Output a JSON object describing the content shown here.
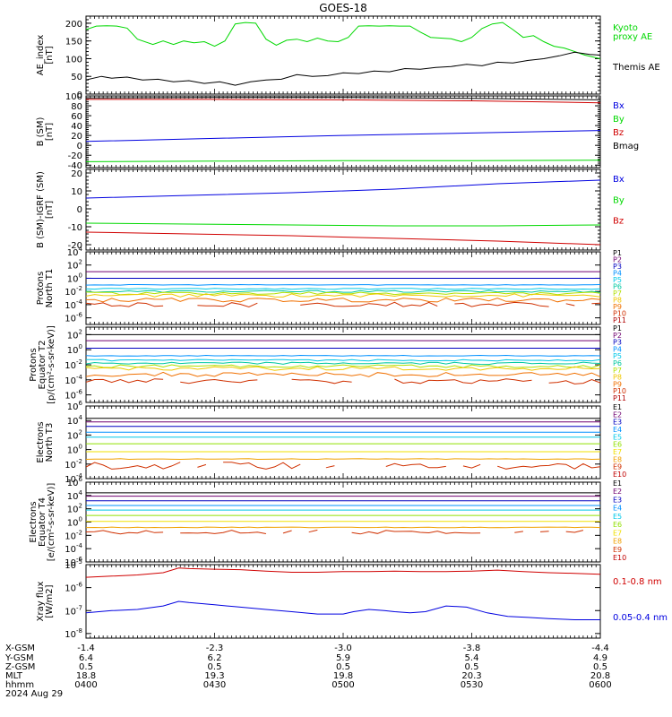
{
  "title": "GOES-18",
  "colors": {
    "black": "#000000",
    "blue": "#0000e0",
    "green": "#00d800",
    "red": "#d00000",
    "P1": "#000000",
    "P2": "#700070",
    "P3": "#0000c0",
    "P4": "#0090ff",
    "P5": "#00c8e8",
    "P6": "#00c8a0",
    "P7": "#b0e000",
    "P8": "#f0c800",
    "P9": "#f07000",
    "P10": "#d03000",
    "P11": "#b00000",
    "E1": "#000000",
    "E2": "#700070",
    "E3": "#0000c0",
    "E4": "#0090ff",
    "E5": "#00c8e8",
    "E6": "#90e000",
    "E7": "#f0e000",
    "E8": "#f0a000",
    "E9": "#d03000",
    "E10": "#c00000"
  },
  "orbit": {
    "row_labels": [
      "X-GSM",
      "Y-GSM",
      "Z-GSM",
      "MLT",
      "hhmm",
      "2024 Aug 29"
    ],
    "columns": [
      {
        "x": "-1.4",
        "y": "6.4",
        "z": "0.5",
        "mlt": "18.8",
        "hhmm": "0400"
      },
      {
        "x": "-2.3",
        "y": "6.2",
        "z": "0.5",
        "mlt": "19.3",
        "hhmm": "0430"
      },
      {
        "x": "-3.0",
        "y": "5.9",
        "z": "0.5",
        "mlt": "19.8",
        "hhmm": "0500"
      },
      {
        "x": "-3.8",
        "y": "5.4",
        "z": "0.5",
        "mlt": "20.3",
        "hhmm": "0530"
      },
      {
        "x": "-4.4",
        "y": "4.9",
        "z": "0.5",
        "mlt": "20.8",
        "hhmm": "0600"
      }
    ]
  },
  "chart_data": [
    {
      "id": "ae",
      "type": "line",
      "ylabel": [
        "AE_index",
        "[nT]"
      ],
      "ylim": [
        0,
        220
      ],
      "yticks": [
        0,
        50,
        100,
        150,
        200
      ],
      "legend": [
        {
          "text": "Kyoto",
          "color": "green"
        },
        {
          "text": "proxy AE",
          "color": "green"
        },
        {
          "text": "",
          "color": "black"
        },
        {
          "text": "Themis AE",
          "color": "black"
        }
      ],
      "series": [
        {
          "name": "Kyoto proxy AE",
          "color": "green",
          "x": [
            0,
            2,
            4,
            6,
            8,
            10,
            13,
            15,
            17,
            19,
            21,
            23,
            25,
            27,
            29,
            31,
            33,
            35,
            37,
            39,
            41,
            43,
            45,
            47,
            49,
            51,
            53,
            55,
            57,
            59,
            61,
            63,
            65,
            67,
            69,
            71,
            73,
            75,
            77,
            79,
            81,
            83,
            85,
            87,
            89,
            91,
            93,
            95,
            97,
            100
          ],
          "y": [
            182,
            192,
            193,
            192,
            186,
            155,
            140,
            150,
            140,
            150,
            145,
            148,
            135,
            150,
            198,
            202,
            200,
            155,
            138,
            152,
            155,
            148,
            158,
            150,
            148,
            160,
            192,
            193,
            192,
            193,
            192,
            192,
            175,
            160,
            158,
            156,
            148,
            160,
            185,
            198,
            202,
            182,
            160,
            165,
            148,
            135,
            130,
            120,
            110,
            100
          ]
        },
        {
          "name": "Themis AE",
          "color": "black",
          "x": [
            0,
            3,
            5,
            8,
            11,
            14,
            17,
            20,
            23,
            26,
            29,
            32,
            35,
            38,
            41,
            44,
            47,
            50,
            53,
            56,
            59,
            62,
            65,
            68,
            71,
            74,
            77,
            80,
            83,
            86,
            89,
            92,
            95,
            98,
            100
          ],
          "y": [
            40,
            50,
            45,
            48,
            40,
            42,
            35,
            38,
            30,
            35,
            25,
            35,
            40,
            42,
            55,
            50,
            52,
            60,
            58,
            65,
            63,
            72,
            70,
            75,
            78,
            84,
            80,
            90,
            88,
            95,
            100,
            108,
            118,
            112,
            110
          ]
        }
      ]
    },
    {
      "id": "b",
      "type": "line",
      "ylabel": [
        "B (SM)",
        "[nT]"
      ],
      "ylim": [
        -45,
        100
      ],
      "yticks": [
        -40,
        -20,
        0,
        20,
        40,
        60,
        80,
        100
      ],
      "legend": [
        {
          "text": "Bx",
          "color": "blue"
        },
        {
          "text": "By",
          "color": "green"
        },
        {
          "text": "Bz",
          "color": "red"
        },
        {
          "text": "Bmag",
          "color": "black"
        }
      ],
      "series": [
        {
          "name": "Bmag",
          "color": "black",
          "x": [
            0,
            25,
            50,
            75,
            100
          ],
          "y": [
            96,
            97,
            97,
            95,
            92
          ]
        },
        {
          "name": "Bz",
          "color": "red",
          "x": [
            0,
            25,
            50,
            75,
            100
          ],
          "y": [
            93,
            93,
            92,
            90,
            86
          ]
        },
        {
          "name": "Bx",
          "color": "blue",
          "x": [
            0,
            25,
            50,
            75,
            100
          ],
          "y": [
            8,
            14,
            20,
            25,
            30
          ]
        },
        {
          "name": "By",
          "color": "green",
          "x": [
            0,
            25,
            50,
            75,
            100
          ],
          "y": [
            -33,
            -32,
            -31,
            -31,
            -30
          ]
        }
      ]
    },
    {
      "id": "bdiff",
      "type": "line",
      "ylabel": [
        "B (SM)-IGRF (SM)",
        "[nT]"
      ],
      "ylim": [
        -23,
        22
      ],
      "yticks": [
        -20,
        -10,
        0,
        10,
        20
      ],
      "legend": [
        {
          "text": "Bx",
          "color": "blue"
        },
        {
          "text": "By",
          "color": "green"
        },
        {
          "text": "Bz",
          "color": "red"
        }
      ],
      "series": [
        {
          "name": "Bx",
          "color": "blue",
          "x": [
            0,
            20,
            40,
            60,
            80,
            100
          ],
          "y": [
            6,
            7.5,
            9,
            11,
            14,
            16
          ]
        },
        {
          "name": "By",
          "color": "green",
          "x": [
            0,
            20,
            40,
            60,
            80,
            100
          ],
          "y": [
            -8,
            -8.5,
            -9,
            -9.5,
            -9.5,
            -9
          ]
        },
        {
          "name": "Bz",
          "color": "red",
          "x": [
            0,
            20,
            40,
            60,
            80,
            100
          ],
          "y": [
            -13,
            -14,
            -15,
            -16.5,
            -18,
            -20
          ]
        }
      ]
    },
    {
      "id": "p1",
      "type": "line",
      "log": true,
      "ylabel": [
        "Protons",
        "North T1"
      ],
      "ylim": [
        -7,
        4
      ],
      "yticks": [
        -6,
        -4,
        -2,
        0,
        2,
        4
      ],
      "legend": [
        {
          "text": "P1",
          "color": "P1"
        },
        {
          "text": "P2",
          "color": "P2"
        },
        {
          "text": "P3",
          "color": "P3"
        },
        {
          "text": "P4",
          "color": "P4"
        },
        {
          "text": "P5",
          "color": "P5"
        },
        {
          "text": "P6",
          "color": "P6"
        },
        {
          "text": "P7",
          "color": "P7"
        },
        {
          "text": "P8",
          "color": "P8"
        },
        {
          "text": "P9",
          "color": "P9"
        },
        {
          "text": "P10",
          "color": "P10"
        },
        {
          "text": "P11",
          "color": "P11"
        }
      ],
      "series": [
        {
          "name": "P2",
          "color": "P2",
          "flat": 1.0,
          "j": 0
        },
        {
          "name": "P3",
          "color": "P3",
          "flat": 0.0,
          "j": 0
        },
        {
          "name": "P4",
          "color": "P4",
          "flat": -1.0,
          "j": 0.05
        },
        {
          "name": "P5",
          "color": "P5",
          "flat": -1.6,
          "j": 0.08
        },
        {
          "name": "P6",
          "color": "P6",
          "flat": -2.0,
          "j": 0.15
        },
        {
          "name": "P7",
          "color": "P7",
          "flat": -2.3,
          "j": 0.2
        },
        {
          "name": "P8",
          "color": "P8",
          "flat": -2.6,
          "j": 0.25
        },
        {
          "name": "P9",
          "color": "P9",
          "flat": -3.3,
          "j": 0.3
        },
        {
          "name": "P10",
          "color": "P10",
          "flat": -4.0,
          "j": 0.35,
          "gaps": true
        }
      ]
    },
    {
      "id": "p2",
      "type": "line",
      "log": true,
      "ylabel": [
        "Protons",
        "Equator T2",
        "[p/(cm²-s-sr-keV)]"
      ],
      "ylim": [
        -7,
        3
      ],
      "yticks": [
        -6,
        -4,
        -2,
        0,
        2
      ],
      "legend": [
        {
          "text": "P1",
          "color": "P1"
        },
        {
          "text": "P2",
          "color": "P2"
        },
        {
          "text": "P3",
          "color": "P3"
        },
        {
          "text": "P4",
          "color": "P4"
        },
        {
          "text": "P5",
          "color": "P5"
        },
        {
          "text": "P6",
          "color": "P6"
        },
        {
          "text": "P7",
          "color": "P7"
        },
        {
          "text": "P8",
          "color": "P8"
        },
        {
          "text": "P9",
          "color": "P9"
        },
        {
          "text": "P10",
          "color": "P10"
        },
        {
          "text": "P11",
          "color": "P11"
        }
      ],
      "series": [
        {
          "name": "P1",
          "color": "P1",
          "flat": 2.0,
          "j": 0
        },
        {
          "name": "P2",
          "color": "P2",
          "flat": 1.2,
          "j": 0
        },
        {
          "name": "P3",
          "color": "P3",
          "flat": 0.2,
          "j": 0
        },
        {
          "name": "P4",
          "color": "P4",
          "flat": -0.8,
          "j": 0.05
        },
        {
          "name": "P5",
          "color": "P5",
          "flat": -1.4,
          "j": 0.1
        },
        {
          "name": "P6",
          "color": "P6",
          "flat": -1.8,
          "j": 0.15
        },
        {
          "name": "P7",
          "color": "P7",
          "flat": -2.2,
          "j": 0.2
        },
        {
          "name": "P8",
          "color": "P8",
          "flat": -2.5,
          "j": 0.25
        },
        {
          "name": "P9",
          "color": "P9",
          "flat": -3.3,
          "j": 0.3
        },
        {
          "name": "P10",
          "color": "P10",
          "flat": -4.2,
          "j": 0.35,
          "gaps": true
        }
      ]
    },
    {
      "id": "e3",
      "type": "line",
      "log": true,
      "ylabel": [
        "Electrons",
        "North T3"
      ],
      "ylim": [
        -4,
        6
      ],
      "yticks": [
        -4,
        -2,
        0,
        2,
        4,
        6
      ],
      "legend": [
        {
          "text": "E1",
          "color": "E1"
        },
        {
          "text": "E2",
          "color": "E2"
        },
        {
          "text": "E3",
          "color": "E3"
        },
        {
          "text": "E4",
          "color": "E4"
        },
        {
          "text": "E5",
          "color": "E5"
        },
        {
          "text": "E6",
          "color": "E6"
        },
        {
          "text": "E7",
          "color": "E7"
        },
        {
          "text": "E8",
          "color": "E8"
        },
        {
          "text": "E9",
          "color": "E9"
        },
        {
          "text": "E10",
          "color": "E10"
        }
      ],
      "series": [
        {
          "name": "E1",
          "color": "E1",
          "flat": 4.3,
          "j": 0
        },
        {
          "name": "E2",
          "color": "E2",
          "flat": 3.8,
          "j": 0
        },
        {
          "name": "E3",
          "color": "E3",
          "flat": 3.2,
          "j": 0
        },
        {
          "name": "E4",
          "color": "E4",
          "flat": 2.4,
          "j": 0
        },
        {
          "name": "E5",
          "color": "E5",
          "flat": 1.7,
          "j": 0
        },
        {
          "name": "E6",
          "color": "E6",
          "flat": 0.8,
          "j": 0
        },
        {
          "name": "E7",
          "color": "E7",
          "flat": -0.3,
          "j": 0
        },
        {
          "name": "E8",
          "color": "E8",
          "flat": -1.3,
          "j": 0.05
        },
        {
          "name": "E9",
          "color": "E9",
          "flat": -2.2,
          "j": 0.5,
          "gaps": true
        }
      ]
    },
    {
      "id": "e4",
      "type": "line",
      "log": true,
      "ylabel": [
        "Electrons",
        "Equator T4",
        "[e/(cm²-s-sr-keV)]"
      ],
      "ylim": [
        -6,
        6
      ],
      "yticks": [
        -6,
        -4,
        -2,
        0,
        2,
        4,
        6
      ],
      "legend": [
        {
          "text": "E1",
          "color": "E1"
        },
        {
          "text": "E2",
          "color": "E2"
        },
        {
          "text": "E3",
          "color": "E3"
        },
        {
          "text": "E4",
          "color": "E4"
        },
        {
          "text": "E5",
          "color": "E5"
        },
        {
          "text": "E6",
          "color": "E6"
        },
        {
          "text": "E7",
          "color": "E7"
        },
        {
          "text": "E8",
          "color": "E8"
        },
        {
          "text": "E9",
          "color": "E9"
        },
        {
          "text": "E10",
          "color": "E10"
        }
      ],
      "series": [
        {
          "name": "E1",
          "color": "E1",
          "flat": 4.4,
          "j": 0
        },
        {
          "name": "E2",
          "color": "E2",
          "flat": 3.9,
          "j": 0
        },
        {
          "name": "E3",
          "color": "E3",
          "flat": 3.2,
          "j": 0
        },
        {
          "name": "E4",
          "color": "E4",
          "flat": 2.5,
          "j": 0
        },
        {
          "name": "E5",
          "color": "E5",
          "flat": 1.8,
          "j": 0
        },
        {
          "name": "E6",
          "color": "E6",
          "flat": 1.0,
          "j": 0
        },
        {
          "name": "E7",
          "color": "E7",
          "flat": 0.1,
          "j": 0
        },
        {
          "name": "E8",
          "color": "E8",
          "flat": -0.8,
          "j": 0.05
        },
        {
          "name": "E9",
          "color": "E9",
          "flat": -1.5,
          "j": 0.3,
          "gaps": true
        }
      ]
    },
    {
      "id": "xray",
      "type": "line",
      "log": true,
      "ylabel": [
        "Xray flux",
        "[W/m2]"
      ],
      "ylim": [
        -8.2,
        -5
      ],
      "yticks": [
        -8,
        -7,
        -6,
        -5
      ],
      "legend": [
        {
          "text": "0.1-0.8 nm",
          "color": "red"
        },
        {
          "text": "0.05-0.4 nm",
          "color": "blue"
        }
      ],
      "series": [
        {
          "name": "0.1-0.8 nm",
          "color": "red",
          "x": [
            0,
            5,
            10,
            15,
            18,
            20,
            25,
            30,
            35,
            40,
            45,
            50,
            55,
            60,
            65,
            70,
            75,
            80,
            85,
            90,
            95,
            100
          ],
          "y": [
            -5.55,
            -5.5,
            -5.45,
            -5.35,
            -5.15,
            -5.17,
            -5.2,
            -5.22,
            -5.28,
            -5.33,
            -5.33,
            -5.3,
            -5.3,
            -5.28,
            -5.3,
            -5.3,
            -5.28,
            -5.24,
            -5.3,
            -5.35,
            -5.38,
            -5.42
          ]
        },
        {
          "name": "0.05-0.4 nm",
          "color": "blue",
          "x": [
            0,
            5,
            10,
            15,
            18,
            20,
            25,
            30,
            35,
            40,
            45,
            50,
            52,
            55,
            58,
            60,
            63,
            66,
            70,
            74,
            78,
            82,
            86,
            90,
            95,
            100
          ],
          "y": [
            -7.1,
            -7.0,
            -6.95,
            -6.8,
            -6.6,
            -6.65,
            -6.75,
            -6.85,
            -6.95,
            -7.05,
            -7.15,
            -7.15,
            -7.05,
            -6.95,
            -7.0,
            -7.05,
            -7.1,
            -7.05,
            -6.8,
            -6.85,
            -7.1,
            -7.25,
            -7.3,
            -7.35,
            -7.4,
            -7.4
          ]
        }
      ]
    }
  ]
}
